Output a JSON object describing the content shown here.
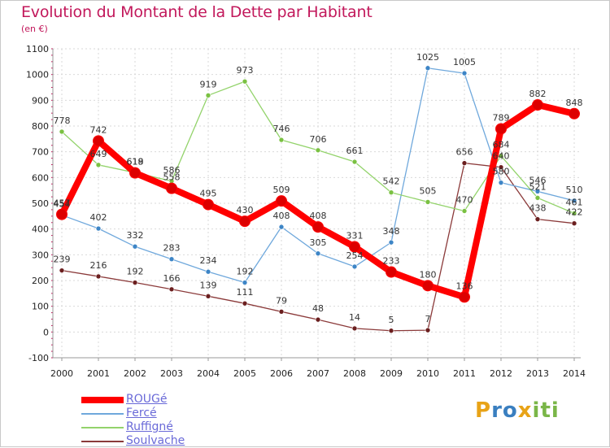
{
  "title": "Evolution du Montant de la Dette par Habitant",
  "subtitle": "(en €)",
  "logo": {
    "text": "Proxiti",
    "letters": [
      "P",
      "r",
      "o",
      "x",
      "i",
      "t",
      "i"
    ],
    "colors": [
      "#e8a317",
      "#3a7fc0",
      "#3a7fc0",
      "#e8a317",
      "#7ab648",
      "#7ab648",
      "#7ab648"
    ]
  },
  "chart_data": {
    "type": "line",
    "x": [
      "2000",
      "2001",
      "2002",
      "2003",
      "2004",
      "2005",
      "2006",
      "2007",
      "2008",
      "2009",
      "2010",
      "2011",
      "2012",
      "2013",
      "2014"
    ],
    "ylim": [
      -100,
      1100
    ],
    "yticks": [
      "-100",
      "0",
      "100",
      "200",
      "300",
      "400",
      "500",
      "600",
      "700",
      "800",
      "900",
      "1000",
      "1100"
    ],
    "grid": true,
    "legend_position": "bottom-left",
    "series": [
      {
        "name": "ROUGé",
        "color": "#ff0000",
        "marker": "#dd0000",
        "width": 8,
        "values": [
          457,
          742,
          618,
          558,
          495,
          430,
          509,
          408,
          331,
          233,
          180,
          136,
          789,
          882,
          848
        ],
        "labels": [
          "457",
          "742",
          "618",
          "558",
          "495",
          "430",
          "509",
          "408",
          "331",
          "233",
          "180",
          "136",
          "789",
          "882",
          "848"
        ]
      },
      {
        "name": "Fercé",
        "color": "#6fa8dc",
        "marker": "#3d85c6",
        "width": 1.3,
        "values": [
          454,
          402,
          332,
          283,
          234,
          192,
          408,
          305,
          254,
          348,
          1025,
          1005,
          580,
          546,
          510
        ],
        "labels": [
          "454",
          "402",
          "332",
          "283",
          "234",
          "192",
          "408",
          "305",
          "254",
          "348",
          "1025",
          "1005",
          "580",
          "546",
          "510"
        ]
      },
      {
        "name": "Ruffigné",
        "color": "#93d36b",
        "marker": "#7ac142",
        "width": 1.3,
        "values": [
          778,
          649,
          619,
          586,
          919,
          973,
          746,
          706,
          661,
          542,
          505,
          470,
          684,
          521,
          461
        ],
        "labels": [
          "778",
          "649",
          "619",
          "586",
          "919",
          "973",
          "746",
          "706",
          "661",
          "542",
          "505",
          "470",
          "684",
          "521",
          "461"
        ]
      },
      {
        "name": "Soulvache",
        "color": "#8b3a3a",
        "marker": "#6b1f1f",
        "width": 1.3,
        "values": [
          239,
          216,
          192,
          166,
          139,
          111,
          79,
          48,
          14,
          5,
          7,
          656,
          640,
          438,
          422
        ],
        "labels": [
          "239",
          "216",
          "192",
          "166",
          "139",
          "111",
          "79",
          "48",
          "14",
          "5",
          "7",
          "656",
          "640",
          "438",
          "422"
        ]
      }
    ]
  }
}
